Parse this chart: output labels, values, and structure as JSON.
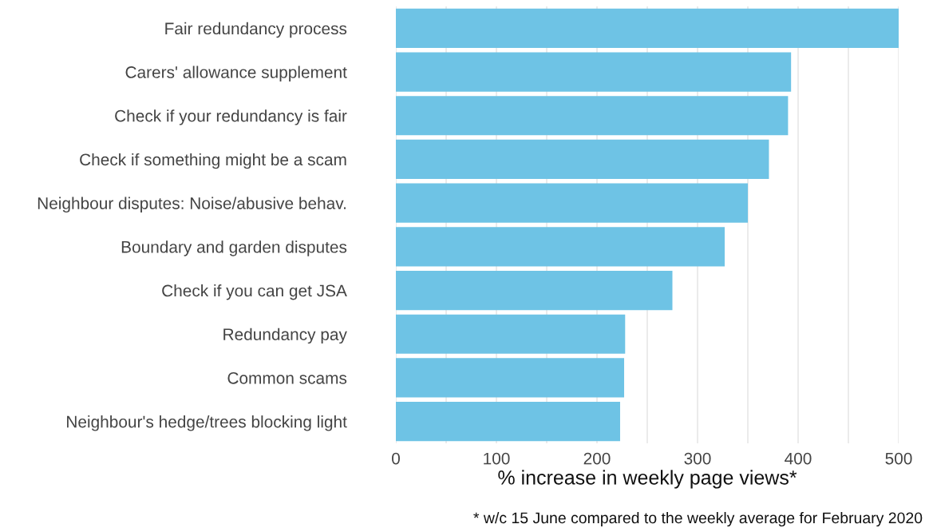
{
  "chart_data": {
    "type": "bar",
    "orientation": "horizontal",
    "xlabel": "% increase in weekly page views*",
    "categories": [
      "Fair redundancy process",
      "Carers' allowance supplement",
      "Check if your redundancy is fair",
      "Check if something might be a scam",
      "Neighbour disputes: Noise/abusive behav.",
      "Boundary and garden disputes",
      "Check if you can get JSA",
      "Redundancy pay",
      "Common scams",
      "Neighbour's hedge/trees blocking light"
    ],
    "values": [
      500,
      393,
      390,
      371,
      350,
      327,
      275,
      228,
      227,
      223
    ],
    "color": "#6ec3e5",
    "xlim": [
      0,
      500
    ],
    "xticks": [
      0,
      {
        "value": 50,
        "label": null
      },
      100,
      {
        "value": 150,
        "label": null
      },
      200,
      {
        "value": 250,
        "label": null
      },
      300,
      {
        "value": 350,
        "label": null
      },
      400,
      {
        "value": 450,
        "label": null
      },
      500
    ],
    "grid": "x",
    "annotations": [
      "* w/c 15 June compared to the weekly average for February 2020"
    ]
  }
}
